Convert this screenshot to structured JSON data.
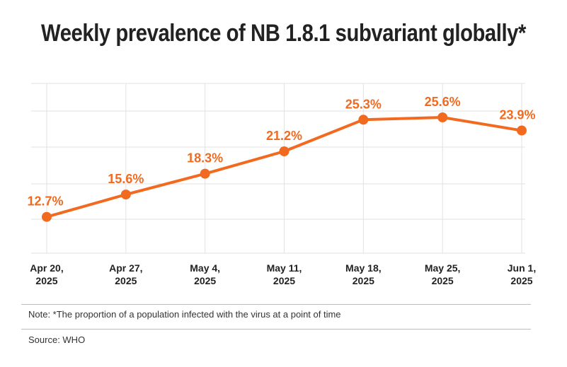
{
  "colors": {
    "series": "#f26a1f",
    "grid": "#e2e2e2",
    "text": "#222222"
  },
  "chart_data": {
    "type": "line",
    "title": "Weekly prevalence of NB 1.8.1 subvariant globally*",
    "xlabel": "",
    "ylabel": "",
    "grid": true,
    "ylim": [
      8,
      30
    ],
    "categories": [
      [
        "Apr 20,",
        "2025"
      ],
      [
        "Apr 27,",
        "2025"
      ],
      [
        "May 4,",
        "2025"
      ],
      [
        "May 11,",
        "2025"
      ],
      [
        "May 18,",
        "2025"
      ],
      [
        "May 25,",
        "2025"
      ],
      [
        "Jun 1,",
        "2025"
      ]
    ],
    "series": [
      {
        "name": "NB 1.8.1 prevalence",
        "values": [
          12.7,
          15.6,
          18.3,
          21.2,
          25.3,
          25.6,
          23.9
        ],
        "labels": [
          "12.7%",
          "15.6%",
          "18.3%",
          "21.2%",
          "25.3%",
          "25.6%",
          "23.9%"
        ]
      }
    ]
  },
  "footer": {
    "note": "Note: *The proportion of a population infected with the virus at a point of time",
    "source": "Source: WHO"
  }
}
